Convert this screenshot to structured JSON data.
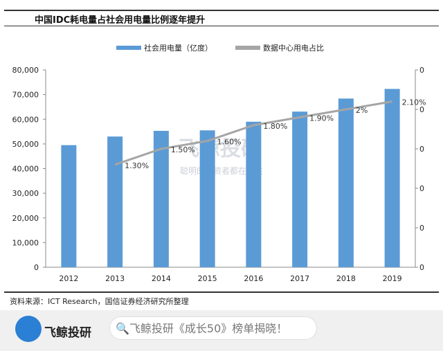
{
  "title": "中国IDC耗电量占社会用电量比例逐年提升",
  "source": "资料来源：ICT Research，国信证券经济研究所整理",
  "watermark": {
    "brand": "飞鲸投研",
    "slogan": "聪明的投资者都在关注"
  },
  "footer": {
    "brand": "飞鲸投研",
    "search_text": "飞鲸投研《成长50》榜单揭晓！"
  },
  "chart_data": {
    "type": "bar+line",
    "categories": [
      "2012",
      "2013",
      "2014",
      "2015",
      "2016",
      "2017",
      "2018",
      "2019"
    ],
    "series": [
      {
        "name": "社会用电量（亿度）",
        "type": "bar",
        "axis": "left",
        "color": "#5b9bd5",
        "values": [
          49500,
          53000,
          55300,
          55500,
          59000,
          63100,
          68400,
          72300
        ]
      },
      {
        "name": "数据中心用电占比",
        "type": "line",
        "axis": "right",
        "color": "#a5a5a5",
        "values": [
          null,
          1.3,
          1.5,
          1.6,
          1.8,
          1.9,
          2.0,
          2.1
        ],
        "labels": [
          "",
          "1.30%",
          "1.50%",
          "1.60%",
          "1.80%",
          "1.90%",
          "2%",
          "2.10%"
        ]
      }
    ],
    "ylim": [
      0,
      80000
    ],
    "yticks": [
      "0",
      "10,000",
      "20,000",
      "30,000",
      "40,000",
      "50,000",
      "60,000",
      "70,000",
      "80,000"
    ],
    "y2lim": [
      0,
      2.5
    ],
    "y2ticks": [
      "0",
      "0",
      "0",
      "0",
      "0",
      "0"
    ],
    "legend": "top-center",
    "grid": false
  }
}
